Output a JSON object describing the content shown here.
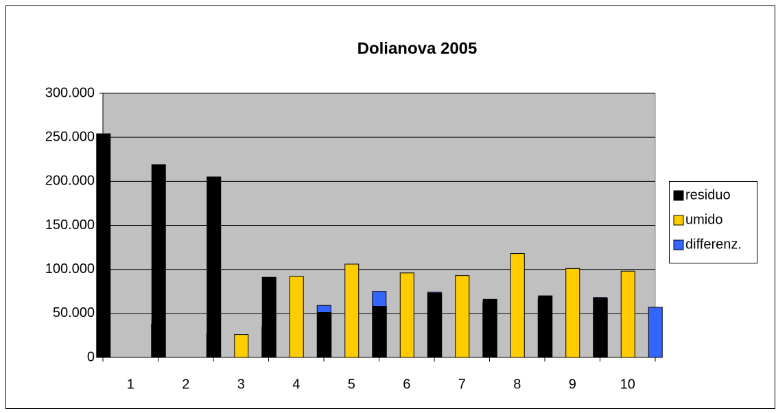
{
  "chart_data": {
    "type": "bar",
    "title": "Dolianova 2005",
    "categories": [
      "1",
      "2",
      "3",
      "4",
      "5",
      "6",
      "7",
      "8",
      "9",
      "10"
    ],
    "series": [
      {
        "name": "residuo",
        "color": "#000000",
        "values": [
          254000,
          219000,
          205000,
          91000,
          51000,
          58000,
          73000,
          66000,
          70000,
          67000
        ]
      },
      {
        "name": "umido",
        "color": "#ffcc00",
        "values": [
          0,
          0,
          26000,
          92000,
          106000,
          96000,
          93000,
          118000,
          101000,
          98000
        ]
      },
      {
        "name": "differenz.",
        "color": "#3366ff",
        "values": [
          38000,
          27000,
          35000,
          59000,
          75000,
          74000,
          63000,
          67000,
          68000,
          57000
        ]
      }
    ],
    "ylim": [
      0,
      300000
    ],
    "yticks": [
      0,
      {
        "value": 50000,
        "label": "50.000"
      },
      {
        "value": 100000,
        "label": "100.000"
      },
      {
        "value": 150000,
        "label": "150.000"
      },
      {
        "value": 200000,
        "label": "200.000"
      },
      {
        "value": 250000,
        "label": "250.000"
      },
      {
        "value": 300000,
        "label": "300.000"
      }
    ],
    "grid": true,
    "legend": "right"
  }
}
